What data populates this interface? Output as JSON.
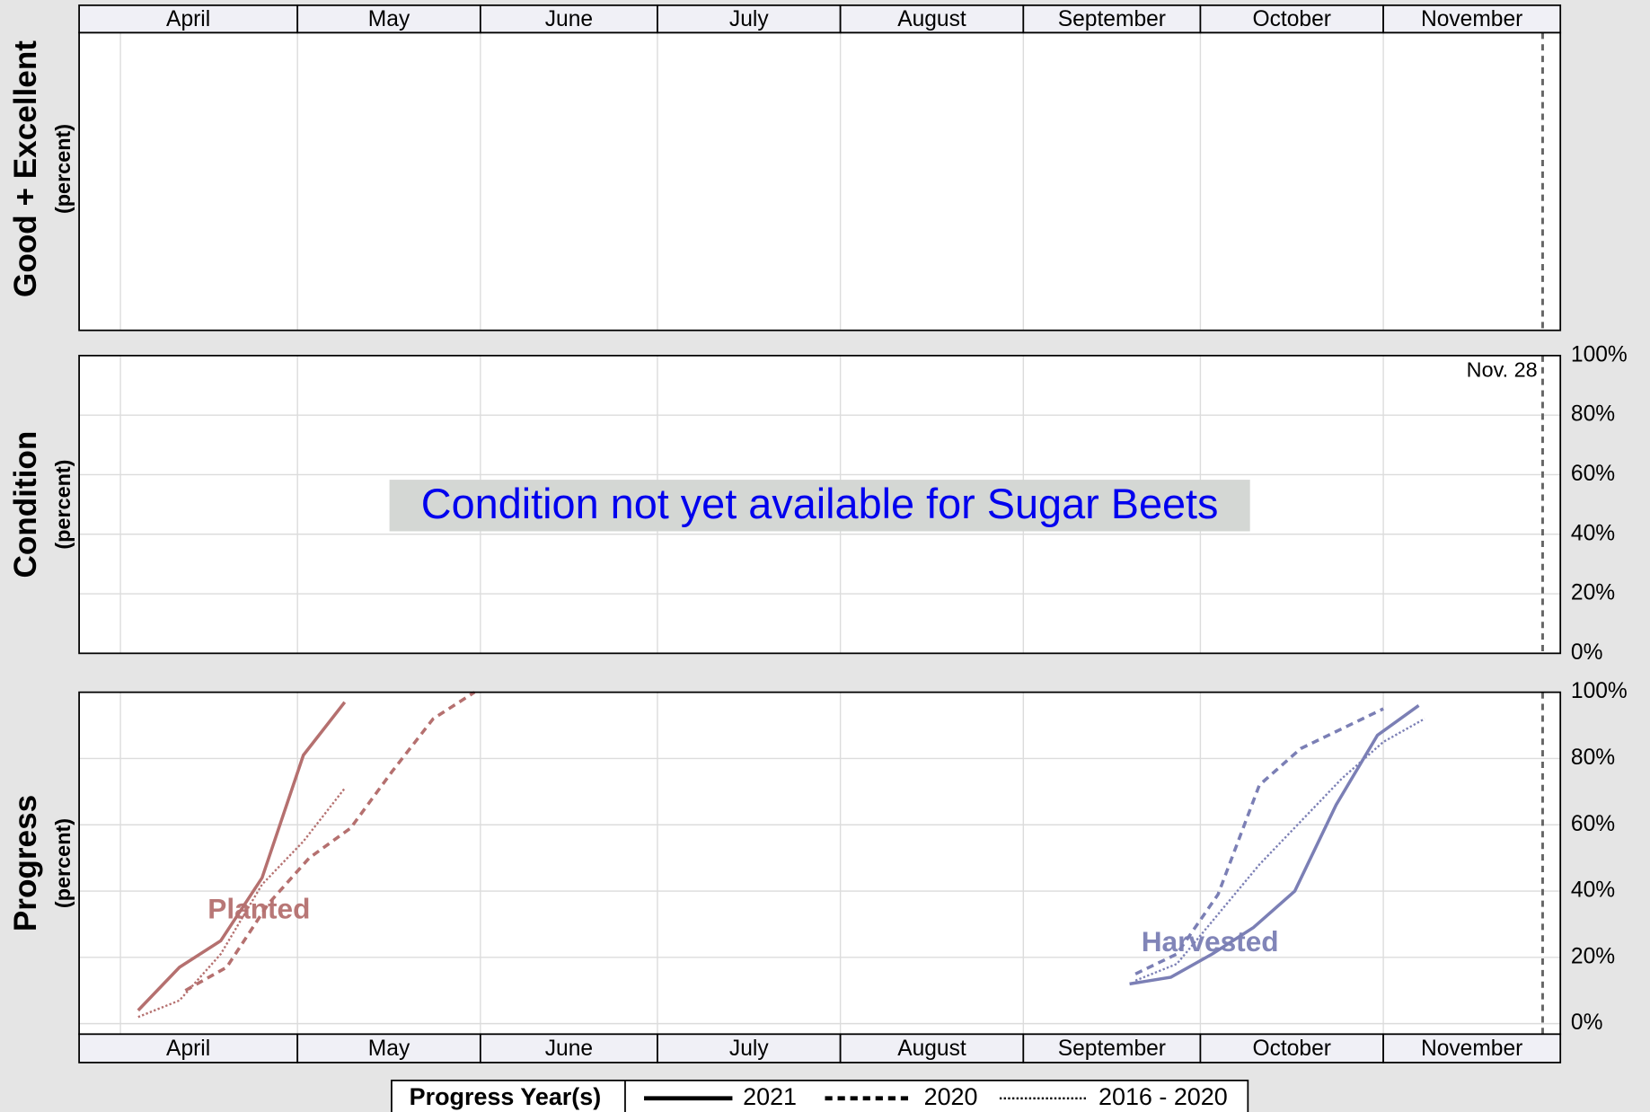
{
  "chart_data": {
    "type": "line",
    "xlim": [
      84,
      335
    ],
    "xticks": [
      {
        "value": 91,
        "label": "April"
      },
      {
        "value": 121,
        "label": "May"
      },
      {
        "value": 152,
        "label": "June"
      },
      {
        "value": 182,
        "label": "July"
      },
      {
        "value": 213,
        "label": "August"
      },
      {
        "value": 244,
        "label": "September"
      },
      {
        "value": 274,
        "label": "October"
      },
      {
        "value": 305,
        "label": "November"
      }
    ],
    "marker": {
      "x": 332,
      "label": "Nov. 28"
    },
    "panels": [
      {
        "ylabel": "Good + Excellent",
        "ylabel_sub": "(percent)"
      },
      {
        "ylabel": "Condition",
        "ylabel_sub": "(percent)",
        "annotation": "Condition not yet available for Sugar Beets",
        "ylim": [
          0,
          100
        ],
        "yticks": [
          {
            "value": 0,
            "label": "0%"
          },
          {
            "value": 20,
            "label": "20%"
          },
          {
            "value": 40,
            "label": "40%"
          },
          {
            "value": 60,
            "label": "60%"
          },
          {
            "value": 80,
            "label": "80%"
          },
          {
            "value": 100,
            "label": "100%"
          }
        ]
      },
      {
        "ylabel": "Progress",
        "ylabel_sub": "(percent)",
        "ylim": [
          0,
          100
        ],
        "yticks": [
          {
            "value": 0,
            "label": "0%"
          },
          {
            "value": 20,
            "label": "20%"
          },
          {
            "value": 40,
            "label": "40%"
          },
          {
            "value": 60,
            "label": "60%"
          },
          {
            "value": 80,
            "label": "80%"
          },
          {
            "value": 100,
            "label": "100%"
          }
        ],
        "crops": [
          {
            "name": "Planted",
            "color": "#b5706f",
            "lines": [
              {
                "x": [
                  94,
                  101,
                  108,
                  115,
                  122,
                  129
                ],
                "values": [
                  4,
                  17,
                  25,
                  44,
                  81,
                  97
                ]
              },
              {
                "x": [
                  102,
                  109,
                  116,
                  123,
                  130,
                  137,
                  144,
                  151
                ],
                "values": [
                  10,
                  17,
                  36,
                  50,
                  59,
                  76,
                  92,
                  100
                ]
              },
              {
                "x": [
                  94,
                  101,
                  108,
                  115,
                  122,
                  129
                ],
                "values": [
                  2,
                  7,
                  21,
                  42,
                  55,
                  71
                ]
              }
            ]
          },
          {
            "name": "Harvested",
            "color": "#7b7fb5",
            "lines": [
              {
                "x": [
                  262,
                  269,
                  276,
                  283,
                  290,
                  297,
                  304,
                  311
                ],
                "values": [
                  12,
                  14,
                  21,
                  29,
                  40,
                  66,
                  87,
                  96
                ]
              },
              {
                "x": [
                  263,
                  270,
                  277,
                  284,
                  291,
                  298,
                  305
                ],
                "values": [
                  15,
                  21,
                  39,
                  72,
                  83,
                  89,
                  95
                ]
              },
              {
                "x": [
                  263,
                  270,
                  277,
                  284,
                  291,
                  298,
                  305,
                  312
                ],
                "values": [
                  13,
                  18,
                  33,
                  48,
                  61,
                  74,
                  85,
                  92
                ]
              }
            ]
          }
        ]
      }
    ],
    "legend_title": "Progress Year(s)",
    "series": [
      {
        "name": "2021",
        "dash": "solid"
      },
      {
        "name": "2020",
        "dash": "dashed"
      },
      {
        "name": "2016 - 2020",
        "dash": "dotted"
      }
    ]
  }
}
